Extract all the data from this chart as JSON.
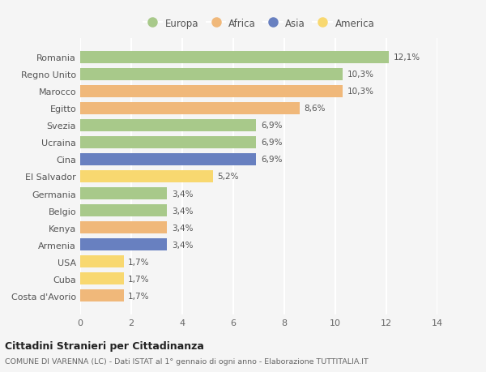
{
  "countries": [
    "Romania",
    "Regno Unito",
    "Marocco",
    "Egitto",
    "Svezia",
    "Ucraina",
    "Cina",
    "El Salvador",
    "Germania",
    "Belgio",
    "Kenya",
    "Armenia",
    "USA",
    "Cuba",
    "Costa d'Avorio"
  ],
  "values": [
    12.1,
    10.3,
    10.3,
    8.6,
    6.9,
    6.9,
    6.9,
    5.2,
    3.4,
    3.4,
    3.4,
    3.4,
    1.7,
    1.7,
    1.7
  ],
  "labels": [
    "12,1%",
    "10,3%",
    "10,3%",
    "8,6%",
    "6,9%",
    "6,9%",
    "6,9%",
    "5,2%",
    "3,4%",
    "3,4%",
    "3,4%",
    "3,4%",
    "1,7%",
    "1,7%",
    "1,7%"
  ],
  "continents": [
    "Europa",
    "Europa",
    "Africa",
    "Africa",
    "Europa",
    "Europa",
    "Asia",
    "America",
    "Europa",
    "Europa",
    "Africa",
    "Asia",
    "America",
    "America",
    "Africa"
  ],
  "colors": {
    "Europa": "#a8c98a",
    "Africa": "#f0b87a",
    "Asia": "#6880c0",
    "America": "#f8d870"
  },
  "xlim": [
    0,
    14
  ],
  "xticks": [
    0,
    2,
    4,
    6,
    8,
    10,
    12,
    14
  ],
  "title": "Cittadini Stranieri per Cittadinanza",
  "subtitle": "COMUNE DI VARENNA (LC) - Dati ISTAT al 1° gennaio di ogni anno - Elaborazione TUTTITALIA.IT",
  "bg_color": "#f5f5f5",
  "grid_color": "#ffffff",
  "bar_height": 0.7,
  "legend_order": [
    "Europa",
    "Africa",
    "Asia",
    "America"
  ]
}
